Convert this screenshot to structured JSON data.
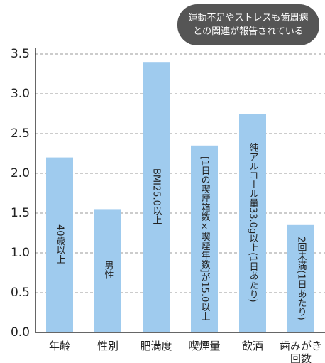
{
  "chart_data": {
    "type": "bar",
    "annotation": [
      "運動不足やストレスも歯周病",
      "との関連が報告されている"
    ],
    "categories": [
      "年齢",
      "性別",
      "肥満度",
      "喫煙量",
      "飲酒",
      "歯みがき回数"
    ],
    "values": [
      2.2,
      1.55,
      3.4,
      2.35,
      2.75,
      1.35
    ],
    "bar_labels": [
      "40歳以上",
      "男性",
      "BMI25.0以上",
      "[1日の喫煙箱数×喫煙年数]が15.0以上",
      "純アルコール量33.0g以上(1日あたり)",
      "2回未満(1日あたり)"
    ],
    "color": "#9fcbee",
    "ylim": [
      0,
      3.5
    ],
    "yticks": [
      {
        "value": 0,
        "label": "0.0"
      },
      0.5,
      {
        "value": 1,
        "label": "1.0"
      },
      1.5,
      {
        "value": 2,
        "label": "2.0"
      },
      2.5,
      {
        "value": 3,
        "label": "3.0"
      },
      3.5
    ],
    "grid": true
  }
}
